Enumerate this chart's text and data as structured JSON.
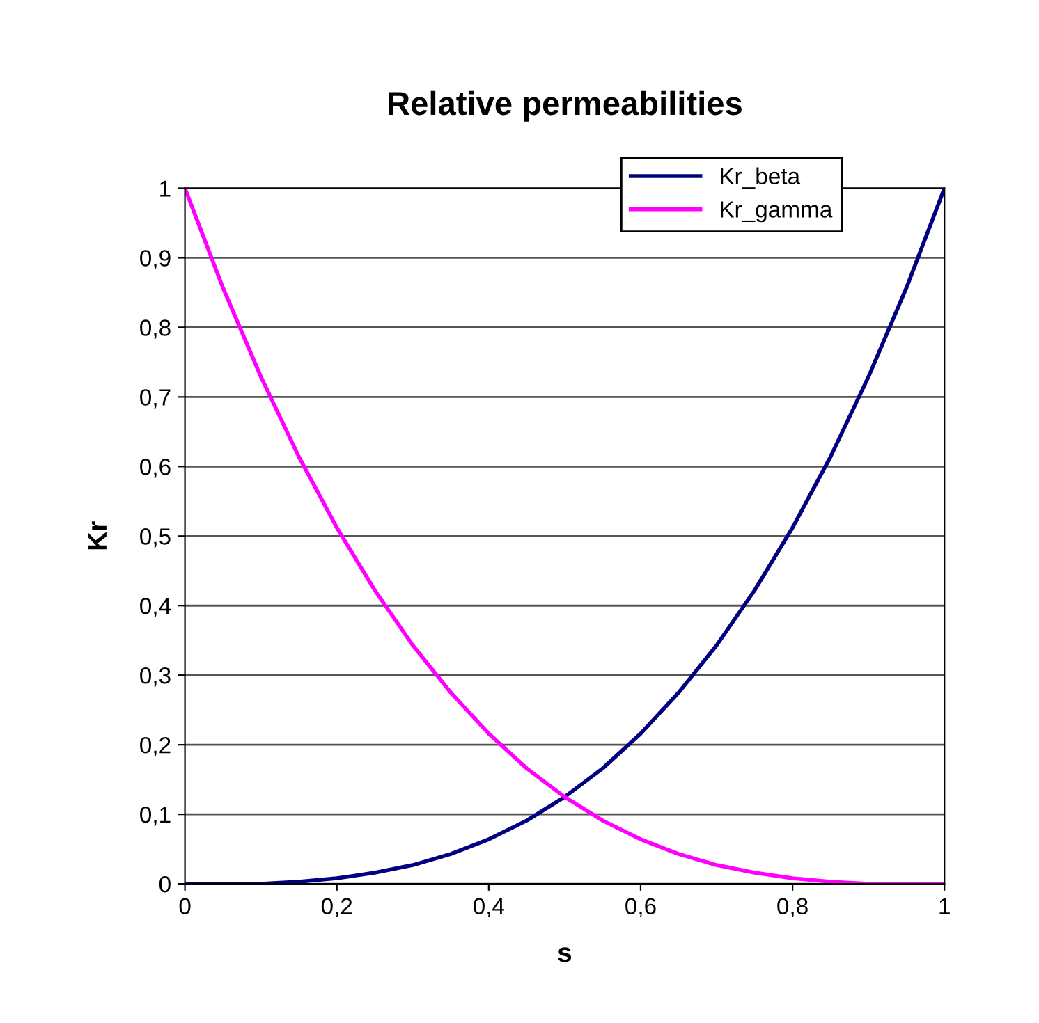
{
  "chart_data": {
    "type": "line",
    "title": "Relative permeabilities",
    "xlabel": "s",
    "ylabel": "Kr",
    "x": [
      0,
      0.05,
      0.1,
      0.15,
      0.2,
      0.25,
      0.3,
      0.35,
      0.4,
      0.45,
      0.5,
      0.55,
      0.6,
      0.65,
      0.7,
      0.75,
      0.8,
      0.85,
      0.9,
      0.95,
      1
    ],
    "series": [
      {
        "name": "Kr_beta",
        "color": "#000080",
        "values": [
          0,
          0,
          0,
          0.003,
          0.008,
          0.016,
          0.027,
          0.043,
          0.064,
          0.091,
          0.125,
          0.166,
          0.216,
          0.275,
          0.343,
          0.422,
          0.512,
          0.614,
          0.729,
          0.857,
          1
        ]
      },
      {
        "name": "Kr_gamma",
        "color": "#ff00ff",
        "values": [
          1,
          0.857,
          0.729,
          0.614,
          0.512,
          0.422,
          0.343,
          0.275,
          0.216,
          0.166,
          0.125,
          0.091,
          0.064,
          0.043,
          0.027,
          0.016,
          0.008,
          0.003,
          0,
          0,
          0
        ]
      }
    ],
    "xlim": [
      0,
      1
    ],
    "ylim": [
      0,
      1
    ],
    "xticks": [
      0,
      {
        "value": 0.2,
        "label": "0,2"
      },
      {
        "value": 0.4,
        "label": "0,4"
      },
      {
        "value": 0.6,
        "label": "0,6"
      },
      {
        "value": 0.8,
        "label": "0,8"
      },
      1
    ],
    "yticks": [
      0,
      {
        "value": 0.1,
        "label": "0,1"
      },
      {
        "value": 0.2,
        "label": "0,2"
      },
      {
        "value": 0.3,
        "label": "0,3"
      },
      {
        "value": 0.4,
        "label": "0,4"
      },
      {
        "value": 0.5,
        "label": "0,5"
      },
      {
        "value": 0.6,
        "label": "0,6"
      },
      {
        "value": 0.7,
        "label": "0,7"
      },
      {
        "value": 0.8,
        "label": "0,8"
      },
      {
        "value": 0.9,
        "label": "0,9"
      },
      1
    ],
    "grid": "y",
    "legend": "top right",
    "marker": "none",
    "line_style": "solid"
  }
}
